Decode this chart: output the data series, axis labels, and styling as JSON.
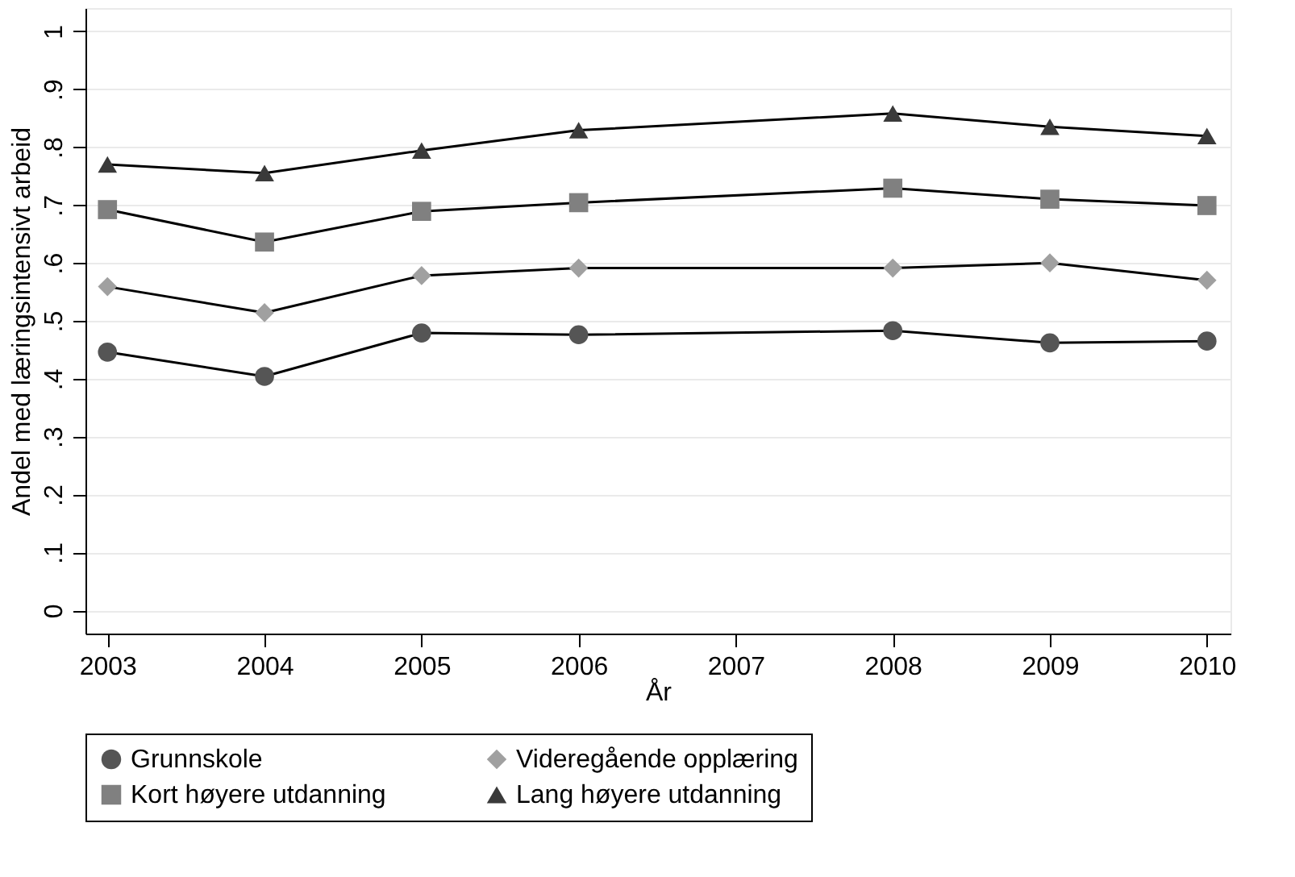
{
  "chart_data": {
    "type": "line",
    "xlabel": "År",
    "ylabel": "Andel med læringsintensivt arbeid",
    "x": [
      2003,
      2004,
      2005,
      2006,
      2008,
      2009,
      2010
    ],
    "series": [
      {
        "name": "Grunnskole",
        "color": "#555555",
        "marker": "circle",
        "values": [
          0.446,
          0.404,
          0.479,
          0.476,
          0.483,
          0.462,
          0.465
        ]
      },
      {
        "name": "Videregående opplæring",
        "color": "#a0a0a0",
        "marker": "diamond",
        "values": [
          0.559,
          0.514,
          0.578,
          0.591,
          0.591,
          0.6,
          0.57
        ]
      },
      {
        "name": "Kort høyere utdanning",
        "color": "#808080",
        "marker": "square",
        "values": [
          0.692,
          0.636,
          0.689,
          0.704,
          0.729,
          0.71,
          0.699
        ]
      },
      {
        "name": "Lang høyere utdanning",
        "color": "#3a3a3a",
        "marker": "triangle",
        "values": [
          0.77,
          0.755,
          0.794,
          0.829,
          0.858,
          0.835,
          0.819
        ]
      }
    ],
    "xlim": [
      2002.86,
      2010.15
    ],
    "xticks": [
      2003,
      2004,
      2005,
      2006,
      2007,
      2008,
      2009,
      2010
    ],
    "ylim": [
      -0.04,
      1.04
    ],
    "yticks": [
      0,
      {
        "value": 0.1,
        "label": ".1"
      },
      {
        "value": 0.2,
        "label": ".2"
      },
      {
        "value": 0.3,
        "label": ".3"
      },
      {
        "value": 0.4,
        "label": ".4"
      },
      {
        "value": 0.5,
        "label": ".5"
      },
      {
        "value": 0.6,
        "label": ".6"
      },
      {
        "value": 0.7,
        "label": ".7"
      },
      {
        "value": 0.8,
        "label": ".8"
      },
      {
        "value": 0.9,
        "label": ".9"
      },
      1
    ],
    "grid": "y",
    "legend": "bottom",
    "line_style": "solid"
  }
}
